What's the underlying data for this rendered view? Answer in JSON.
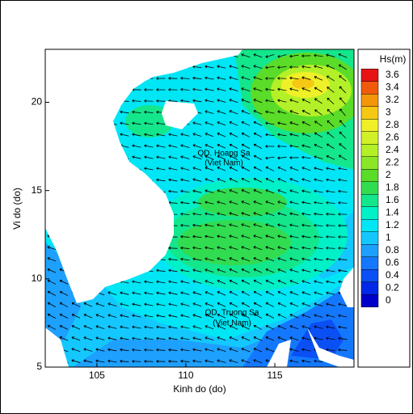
{
  "chart_data": {
    "type": "contour-map",
    "xlabel": "Kinh do (do)",
    "ylabel": "Vi do (do)",
    "xlim": [
      102.1,
      119.45
    ],
    "ylim": [
      5,
      23
    ],
    "xticks": [
      105,
      110,
      115
    ],
    "yticks": [
      5,
      10,
      15,
      20
    ],
    "colorbar": {
      "title": "Hs(m)",
      "levels": [
        0,
        0.2,
        0.4,
        0.6,
        0.8,
        1,
        1.2,
        1.4,
        1.6,
        1.8,
        2,
        2.2,
        2.4,
        2.6,
        2.8,
        3,
        3.2,
        3.4,
        3.6
      ],
      "colors": [
        "#0000c8",
        "#0028e6",
        "#0a50f5",
        "#1478ff",
        "#1ea0ff",
        "#14c8ff",
        "#00e6f5",
        "#00f0c8",
        "#14e68c",
        "#32dc50",
        "#5adc28",
        "#8ce628",
        "#b4f028",
        "#d2f028",
        "#f0f028",
        "#f5c814",
        "#f5960a",
        "#f05a0a",
        "#e61414"
      ]
    },
    "annotations": [
      "QD. Hoang Sa",
      "(Viet Nam)",
      "QD. Truong Sa",
      "(Viet Nam)"
    ]
  }
}
